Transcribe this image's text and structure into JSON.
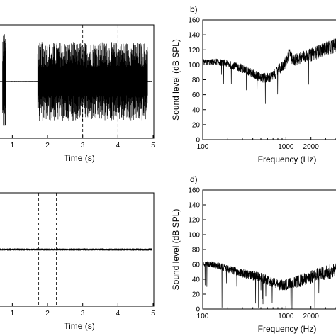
{
  "chart_data": [
    {
      "id": "a",
      "type": "line",
      "panel_label": "",
      "xlabel": "Time (s)",
      "ylabel": "",
      "xlim": [
        0.65,
        5.0
      ],
      "ylim": [
        -1.0,
        1.0
      ],
      "xticks": [
        1,
        2,
        3,
        4,
        5
      ],
      "dashed_markers_x": [
        3.0,
        4.0
      ],
      "series": [
        {
          "segments": [
            {
              "from": 0.65,
              "to": 0.95,
              "amplitude": 0.0
            },
            {
              "from": 0.72,
              "to": 0.82,
              "amplitude": 0.85
            },
            {
              "from": 0.95,
              "to": 1.72,
              "amplitude": 0.01
            },
            {
              "from": 1.72,
              "to": 4.85,
              "amplitude": 0.7
            },
            {
              "from": 4.85,
              "to": 5.0,
              "amplitude": 0.01
            }
          ]
        }
      ]
    },
    {
      "id": "b",
      "type": "line",
      "panel_label": "b)",
      "xlabel": "Frequency (Hz)",
      "ylabel": "Sound level (dB SPL)",
      "xscale": "log",
      "xlim": [
        100,
        4000
      ],
      "ylim": [
        0,
        160
      ],
      "xticks": [
        100,
        1000,
        2000
      ],
      "xtick_labels": [
        "100",
        "1000",
        "2000"
      ],
      "yticks": [
        0,
        20,
        40,
        60,
        80,
        100,
        120,
        140,
        160
      ],
      "series": [
        {
          "points": [
            [
              100,
              103
            ],
            [
              150,
              104
            ],
            [
              200,
              101
            ],
            [
              300,
              95
            ],
            [
              400,
              88
            ],
            [
              500,
              83
            ],
            [
              600,
              82
            ],
            [
              700,
              85
            ],
            [
              800,
              92
            ],
            [
              1000,
              103
            ],
            [
              1100,
              118
            ],
            [
              1200,
              105
            ],
            [
              1500,
              110
            ],
            [
              2000,
              113
            ],
            [
              2500,
              118
            ],
            [
              3000,
              122
            ],
            [
              4000,
              126
            ]
          ]
        }
      ]
    },
    {
      "id": "c",
      "type": "line",
      "panel_label": "",
      "xlabel": "Time (s)",
      "ylabel": "",
      "xlim": [
        0.65,
        5.0
      ],
      "ylim": [
        -1.0,
        1.0
      ],
      "xticks": [
        1,
        2,
        3,
        4,
        5
      ],
      "dashed_markers_x": [
        1.75,
        2.25
      ],
      "series": [
        {
          "segments": [
            {
              "from": 0.65,
              "to": 5.0,
              "amplitude": 0.02
            }
          ]
        }
      ]
    },
    {
      "id": "d",
      "type": "line",
      "panel_label": "d)",
      "xlabel": "Frequency (Hz)",
      "ylabel": "Sound level (dB SPL)",
      "xscale": "log",
      "xlim": [
        100,
        4000
      ],
      "ylim": [
        0,
        160
      ],
      "xticks": [
        100,
        1000,
        2000
      ],
      "xtick_labels": [
        "100",
        "1000",
        "2000"
      ],
      "yticks": [
        0,
        20,
        40,
        60,
        80,
        100,
        120,
        140,
        160
      ],
      "series": [
        {
          "points": [
            [
              100,
              61
            ],
            [
              150,
              59
            ],
            [
              200,
              54
            ],
            [
              300,
              48
            ],
            [
              400,
              45
            ],
            [
              500,
              42
            ],
            [
              600,
              39
            ],
            [
              700,
              36
            ],
            [
              800,
              33
            ],
            [
              900,
              32
            ],
            [
              1000,
              33
            ],
            [
              1200,
              35
            ],
            [
              1500,
              38
            ],
            [
              2000,
              43
            ],
            [
              2500,
              47
            ],
            [
              3000,
              49
            ],
            [
              4000,
              52
            ]
          ]
        }
      ]
    }
  ]
}
